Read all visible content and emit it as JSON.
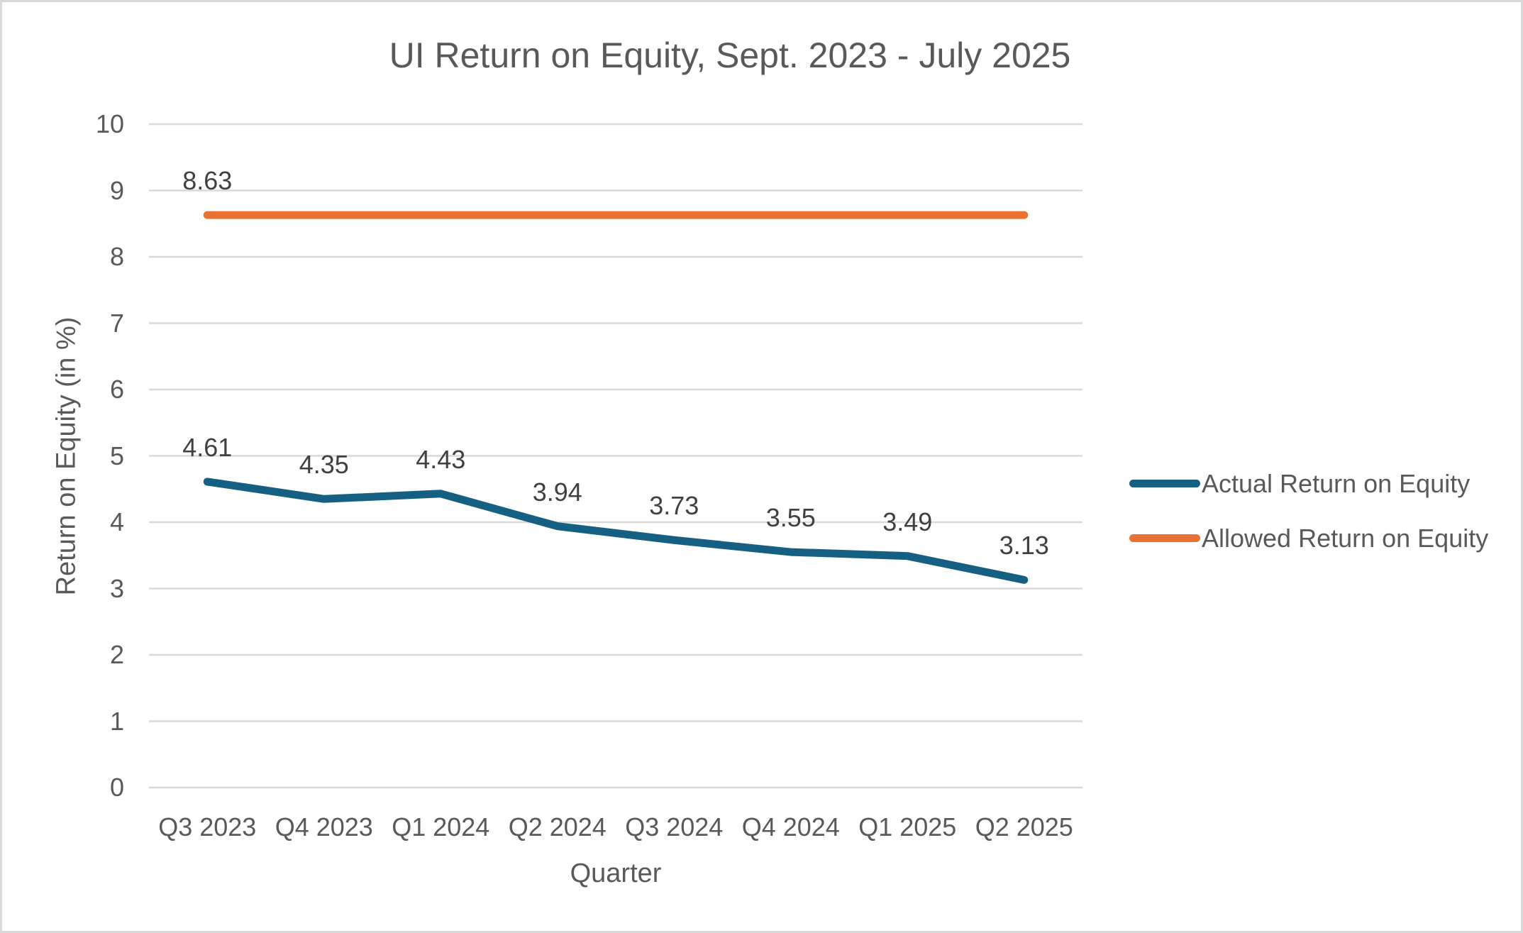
{
  "chart_data": {
    "type": "line",
    "title": "UI Return on Equity, Sept. 2023 - July 2025",
    "xlabel": "Quarter",
    "ylabel": "Return on Equity (in %)",
    "ylim": [
      0,
      10
    ],
    "ytick_step": 1,
    "grid": true,
    "legend_position": "right",
    "categories": [
      "Q3 2023",
      "Q4 2023",
      "Q1 2024",
      "Q2 2024",
      "Q3 2024",
      "Q4 2024",
      "Q1 2025",
      "Q2 2025"
    ],
    "series": [
      {
        "name": "Actual Return on Equity",
        "color": "#156082",
        "values": [
          4.61,
          4.35,
          4.43,
          3.94,
          3.73,
          3.55,
          3.49,
          3.13
        ],
        "data_labels": "all"
      },
      {
        "name": "Allowed Return on Equity",
        "color": "#E97132",
        "values": [
          8.63,
          8.63,
          8.63,
          8.63,
          8.63,
          8.63,
          8.63,
          8.63
        ],
        "data_labels": "first"
      }
    ],
    "colors": {
      "grid": "#D9D9D9",
      "axis_text": "#595959",
      "title_text": "#595959",
      "data_label_text": "#404040",
      "canvas_border": "#D9D9D9",
      "background": "#FFFFFF"
    }
  }
}
